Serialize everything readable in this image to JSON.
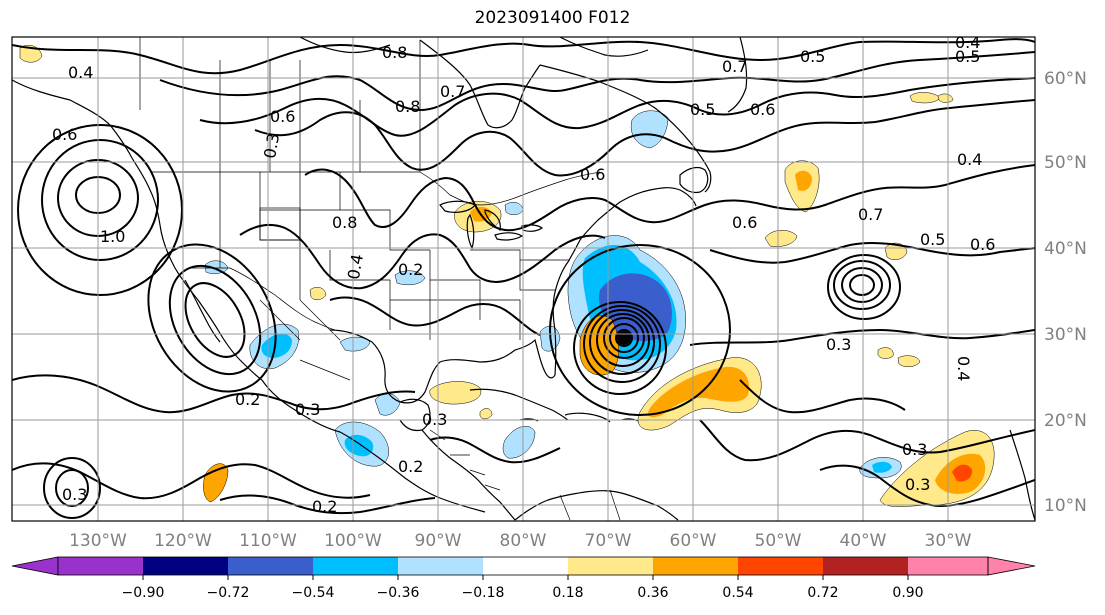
{
  "title": "2023091400 F012",
  "longitude_labels": [
    "130°W",
    "120°W",
    "110°W",
    "100°W",
    "90°W",
    "80°W",
    "70°W",
    "60°W",
    "50°W",
    "40°W",
    "30°W"
  ],
  "latitude_labels": [
    "60°N",
    "50°N",
    "40°N",
    "30°N",
    "20°N",
    "10°N"
  ],
  "contour_labels": [
    "0.8",
    "0.8",
    "0.8",
    "0.7",
    "0.7",
    "0.5",
    "0.5",
    "0.4",
    "0.4",
    "0.6",
    "0.6",
    "0.6",
    "0.6",
    "0.6",
    "0.3",
    "0.3",
    "0.3",
    "0.2",
    "0.2",
    "0.2",
    "0.2",
    "1.0",
    "0.4",
    "0.5",
    "0.6",
    "0.7",
    "0.3",
    "0.3",
    "0.3",
    "0.4",
    "0.3",
    "0.4",
    "0.5"
  ],
  "colorbar": {
    "colors": [
      "#9933cc",
      "#9932cc",
      "#000080",
      "#3a5fcd",
      "#00bfff",
      "#b0e2ff",
      "#ffffff",
      "#ffe98a",
      "#ffa500",
      "#ff4500",
      "#b22222",
      "#ff82ab",
      "#ff82ab"
    ],
    "ticks": [
      "−0.90",
      "−0.72",
      "−0.54",
      "−0.36",
      "−0.18",
      "0.18",
      "0.36",
      "0.54",
      "0.72",
      "0.90"
    ]
  },
  "colors": {
    "light_blue": "#b0e2ff",
    "deep_sky_blue": "#00bfff",
    "royal_blue": "#3a5fcd",
    "light_yellow": "#ffe98a",
    "orange": "#ffa500",
    "orange_red": "#ff4500"
  }
}
